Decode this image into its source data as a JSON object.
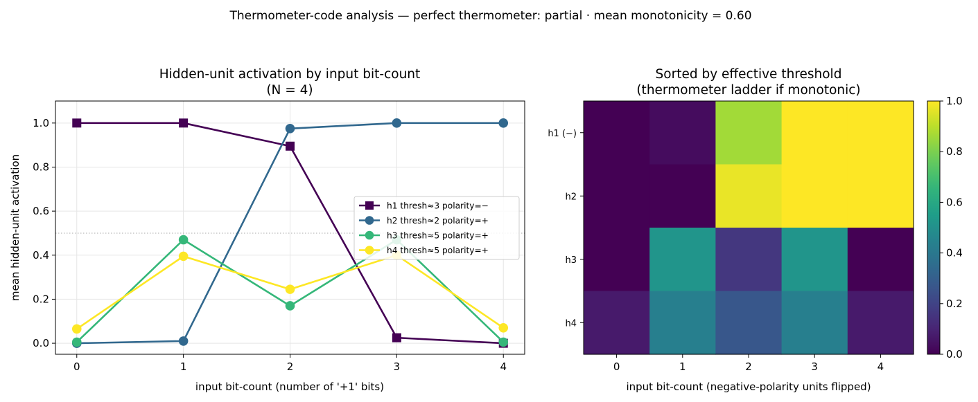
{
  "suptitle": "Thermometer-code analysis  —  perfect thermometer: partial  ·  mean monotonicity = 0.60",
  "chart_data": [
    {
      "type": "line",
      "title": "Hidden-unit activation by input bit-count",
      "subtitle": "(N = 4)",
      "xlabel": "input bit-count  (number of '+1' bits)",
      "ylabel": "mean hidden-unit activation",
      "x": [
        0,
        1,
        2,
        3,
        4
      ],
      "xlim": [
        -0.2,
        4.2
      ],
      "ylim": [
        -0.05,
        1.1
      ],
      "xticks": [
        "0",
        "1",
        "2",
        "3",
        "4"
      ],
      "yticks": [
        "0.0",
        "0.2",
        "0.4",
        "0.6",
        "0.8",
        "1.0"
      ],
      "grid": true,
      "reference_line": 0.5,
      "legend_position": "center-right",
      "series": [
        {
          "name": "h1  thresh≈3  polarity=−",
          "values": [
            1.0,
            1.0,
            0.895,
            0.025,
            0.0
          ],
          "color": "#440154",
          "marker": "square"
        },
        {
          "name": "h2  thresh≈2  polarity=+",
          "values": [
            0.0,
            0.01,
            0.975,
            1.0,
            1.0
          ],
          "color": "#31688e",
          "marker": "circle"
        },
        {
          "name": "h3  thresh≈5  polarity=+",
          "values": [
            0.005,
            0.47,
            0.17,
            0.47,
            0.005
          ],
          "color": "#35b779",
          "marker": "circle"
        },
        {
          "name": "h4  thresh≈5  polarity=+",
          "values": [
            0.065,
            0.395,
            0.245,
            0.4,
            0.07
          ],
          "color": "#fde725",
          "marker": "circle"
        }
      ]
    },
    {
      "type": "heatmap",
      "title": "Sorted by effective threshold",
      "subtitle": "(thermometer ladder if monotonic)",
      "xlabel": "input bit-count  (negative-polarity units flipped)",
      "ylabel": "",
      "x_categories": [
        "0",
        "1",
        "2",
        "3",
        "4"
      ],
      "y_categories": [
        "h1 (−)",
        "h2",
        "h3",
        "h4"
      ],
      "values": [
        [
          0.0,
          0.03,
          0.86,
          1.0,
          1.0
        ],
        [
          0.0,
          0.0,
          0.97,
          1.0,
          1.0
        ],
        [
          0.0,
          0.52,
          0.16,
          0.52,
          0.0
        ],
        [
          0.07,
          0.43,
          0.27,
          0.43,
          0.07
        ]
      ],
      "colormap": "viridis",
      "vmin": 0.0,
      "vmax": 1.0,
      "colorbar_ticks": [
        "0.0",
        "0.2",
        "0.4",
        "0.6",
        "0.8",
        "1.0"
      ]
    }
  ]
}
